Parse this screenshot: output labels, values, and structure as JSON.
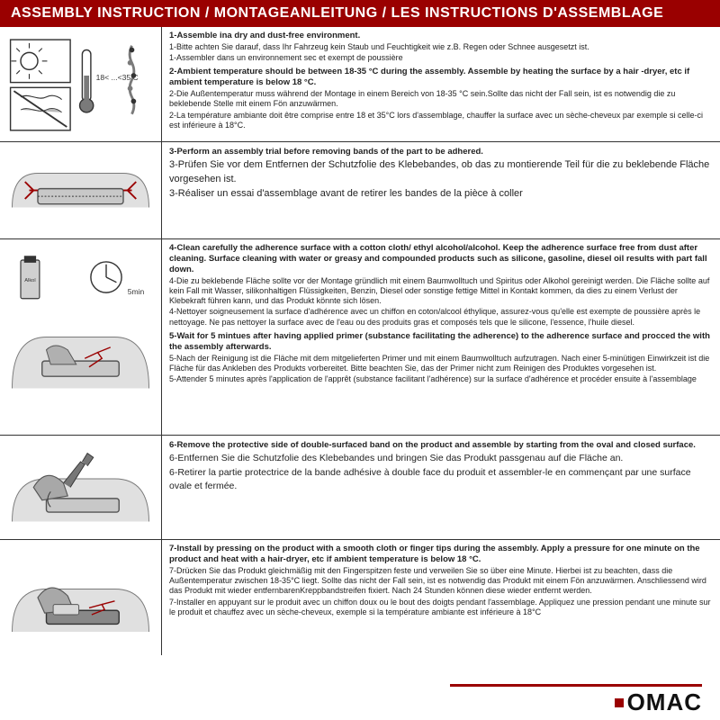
{
  "header": "ASSEMBLY INSTRUCTION / MONTAGEANLEITUNG / LES INSTRUCTIONS D'ASSEMBLAGE",
  "colors": {
    "brand_red": "#9a0000",
    "text": "#222222",
    "border": "#333333",
    "illus_gray": "#b8b8b8",
    "illus_darkgray": "#7a7a7a"
  },
  "logo": "OMAC",
  "steps": [
    {
      "blocks": [
        {
          "bold": "1-Assemble ina dry and dust-free environment.",
          "lines": [
            "1-Bitte achten Sie darauf, dass Ihr Fahrzeug kein Staub und Feuchtigkeit wie z.B. Regen oder Schnee ausgesetzt ist.",
            "1-Assembler dans un environnement sec et exempt de poussière"
          ]
        },
        {
          "bold": "2-Ambient temperature should be between 18-35 °C  during the assembly. Assemble by heating the surface by a hair -dryer, etc if ambient temperature is below 18 °C.",
          "lines": [
            "2-Die Außentemperatur muss während der Montage in einem Bereich von 18-35 °C  sein.Sollte das nicht der Fall sein, ist es notwendig die zu beklebende Stelle mit einem Fön anzuwärmen.",
            "2-La température ambiante doit être comprise entre 18 et 35°C lors d'assemblage, chauffer la surface avec un sèche-cheveux par exemple si celle-ci est inférieure à 18°C."
          ]
        }
      ]
    },
    {
      "blocks": [
        {
          "bold": "3-Perform an assembly trial before removing bands of the part to be adhered.",
          "lines": [
            "3-Prüfen Sie vor dem Entfernen der Schutzfolie des Klebebandes, ob das zu montierende Teil für die zu beklebende Fläche vorgesehen ist.",
            "3-Réaliser un essai d'assemblage avant de retirer les bandes de la pièce à coller"
          ],
          "large": true
        }
      ]
    },
    {
      "blocks": [
        {
          "bold": "4-Clean carefully the adherence surface with a cotton cloth/ ethyl alcohol/alcohol. Keep the adherence surface free from dust after cleaning. Surface cleaning with water or greasy and compounded products such as silicone, gasoline, diesel oil results with part fall down.",
          "lines": [
            "4-Die zu beklebende Fläche sollte vor der Montage gründlich mit einem Baumwolltuch und Spiritus oder Alkohol gereinigt werden. Die Fläche sollte auf kein Fall mit Wasser, silikonhaltigen Flüssigkeiten, Benzin, Diesel oder sonstige fettige Mittel in Kontakt kommen, da dies zu einem Verlust der Klebekraft führen kann, und das Produkt könnte sich lösen.",
            "4-Nettoyer soigneusement la surface d'adhérence avec un chiffon en coton/alcool éthylique, assurez-vous qu'elle est exempte de poussière après le nettoyage. Ne pas nettoyer la surface avec de l'eau ou des produits gras et composés tels que le silicone, l'essence, l'huile diesel."
          ]
        },
        {
          "bold": "5-Wait for 5 mintues after having applied primer (substance facilitating the adherence) to the adherence surface and procced the with the assembly afterwards.",
          "lines": [
            "5-Nach der Reinigung ist die Fläche mit dem mitgelieferten Primer und mit einem Baumwolltuch aufzutragen. Nach einer 5-minütigen Einwirkzeit ist die Fläche für das Ankleben des Produkts vorbereitet. Bitte beachten Sie, das der Primer nicht zum Reinigen des Produktes vorgesehen ist.",
            "5-Attender 5 minutes après l'application de l'apprêt (substance facilitant l'adhérence) sur la surface d'adhérence et procéder ensuite à l'assemblage"
          ]
        }
      ]
    },
    {
      "blocks": [
        {
          "bold": "6-Remove the protective side of double-surfaced band on the product and assemble by starting from the oval and closed surface.",
          "lines": [
            "6-Entfernen Sie die Schutzfolie des Klebebandes und bringen Sie das Produkt passgenau auf die Fläche an.",
            "6-Retirer la partie protectrice de la bande adhésive à double face du produit et assembler-le en commençant par une surface ovale et fermée."
          ],
          "large": true
        }
      ]
    },
    {
      "blocks": [
        {
          "bold": "7-Install by pressing on the product with a smooth cloth or finger tips during the assembly. Apply a pressure for one minute on the product and heat with a hair-dryer, etc if ambient temperature is below 18 °C.",
          "lines": [
            "7-Drücken Sie das Produkt gleichmäßig mit den Fingerspitzen feste und verweilen Sie so über eine Minute. Hierbei ist zu beachten, dass die Außentemperatur zwischen 18-35°C liegt. Sollte das nicht der Fall sein, ist es notwendig das Produkt mit einem Fön anzuwärmen. Anschliessend wird das Produkt mit wieder entfernbarenKreppbandstreifen fixiert. Nach 24 Stunden können diese wieder entfernt werden.",
            "7-Installer en appuyant sur le produit avec un chiffon doux ou le bout des doigts pendant l'assemblage. Appliquez une pression pendant une minute sur le produit et chauffez avec un sèche-cheveux, exemple si la température ambiante est inférieure à 18°C"
          ]
        }
      ]
    }
  ]
}
